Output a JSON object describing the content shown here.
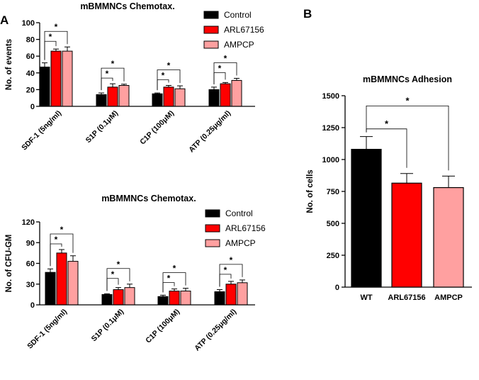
{
  "figure": {
    "panel_a_label": "A",
    "panel_b_label": "B"
  },
  "colors": {
    "control": "#000000",
    "arl": "#ff0000",
    "ampcp": "#ffa0a0"
  },
  "chart_data": [
    {
      "id": "chemotaxis_events",
      "type": "bar",
      "title": "mBMMNCs Chemotax.",
      "xlabel": "",
      "ylabel": "No. of events",
      "ylim": [
        0,
        100
      ],
      "yticks": [
        0,
        20,
        40,
        60,
        80,
        100
      ],
      "categories": [
        "SDF-1 (5ng/ml)",
        "S1P (0.1μM)",
        "C1P (100μM)",
        "ATP (0.25μg/ml)"
      ],
      "series": [
        {
          "name": "Control",
          "values": [
            47,
            14,
            15,
            20
          ],
          "errors": [
            5,
            2,
            1,
            3
          ]
        },
        {
          "name": "ARL67156",
          "values": [
            66,
            23,
            23,
            27
          ],
          "errors": [
            2.5,
            4,
            2,
            1.5
          ]
        },
        {
          "name": "AMPCP",
          "values": [
            66,
            25,
            21,
            31
          ],
          "errors": [
            5,
            1.5,
            3.5,
            2.5
          ]
        }
      ],
      "annotations": [
        {
          "category": 0,
          "from": 0,
          "to": 1,
          "label": "*"
        },
        {
          "category": 0,
          "from": 0,
          "to": 2,
          "label": "*"
        },
        {
          "category": 1,
          "from": 0,
          "to": 1,
          "label": "*"
        },
        {
          "category": 1,
          "from": 0,
          "to": 2,
          "label": "*"
        },
        {
          "category": 2,
          "from": 0,
          "to": 1,
          "label": "*"
        },
        {
          "category": 2,
          "from": 0,
          "to": 2,
          "label": "*"
        },
        {
          "category": 3,
          "from": 0,
          "to": 1,
          "label": "*"
        },
        {
          "category": 3,
          "from": 0,
          "to": 2,
          "label": "*"
        }
      ],
      "legend": [
        "Control",
        "ARL67156",
        "AMPCP"
      ]
    },
    {
      "id": "chemotaxis_cfu",
      "type": "bar",
      "title": "mBMMNCs Chemotax.",
      "xlabel": "",
      "ylabel": "No. of CFU-GM",
      "ylim": [
        0,
        120
      ],
      "yticks": [
        0,
        30,
        60,
        90,
        120
      ],
      "categories": [
        "SDF-1 (5ng/ml)",
        "S1P (0.1μM)",
        "C1P (100μM)",
        "ATP (0.25μg/ml)"
      ],
      "series": [
        {
          "name": "Control",
          "values": [
            47,
            15,
            12,
            19
          ],
          "errors": [
            5,
            1,
            2,
            3
          ]
        },
        {
          "name": "ARL67156",
          "values": [
            75,
            22,
            20,
            30
          ],
          "errors": [
            5,
            3,
            3,
            4
          ]
        },
        {
          "name": "AMPCP",
          "values": [
            63,
            25,
            20,
            32
          ],
          "errors": [
            8,
            5,
            4,
            4
          ]
        }
      ],
      "annotations": [
        {
          "category": 0,
          "from": 0,
          "to": 1,
          "label": "*"
        },
        {
          "category": 0,
          "from": 0,
          "to": 2,
          "label": "*"
        },
        {
          "category": 1,
          "from": 0,
          "to": 1,
          "label": "*"
        },
        {
          "category": 1,
          "from": 0,
          "to": 2,
          "label": "*"
        },
        {
          "category": 2,
          "from": 0,
          "to": 1,
          "label": "*"
        },
        {
          "category": 2,
          "from": 0,
          "to": 2,
          "label": "*"
        },
        {
          "category": 3,
          "from": 0,
          "to": 1,
          "label": "*"
        },
        {
          "category": 3,
          "from": 0,
          "to": 2,
          "label": "*"
        }
      ],
      "legend": [
        "Control",
        "ARL67156",
        "AMPCP"
      ]
    },
    {
      "id": "adhesion",
      "type": "bar",
      "title": "mBMMNCs Adhesion",
      "xlabel": "",
      "ylabel": "No. of cells",
      "ylim": [
        0,
        1500
      ],
      "yticks": [
        0,
        250,
        500,
        750,
        1000,
        1250,
        1500
      ],
      "categories": [
        "WT",
        "ARL67156",
        "AMPCP"
      ],
      "values": [
        1080,
        815,
        780
      ],
      "errors": [
        100,
        75,
        90
      ],
      "bar_colors": [
        "#000000",
        "#ff0000",
        "#ffa0a0"
      ],
      "annotations": [
        {
          "from": 0,
          "to": 1,
          "label": "*"
        },
        {
          "from": 0,
          "to": 2,
          "label": "*"
        }
      ]
    }
  ]
}
